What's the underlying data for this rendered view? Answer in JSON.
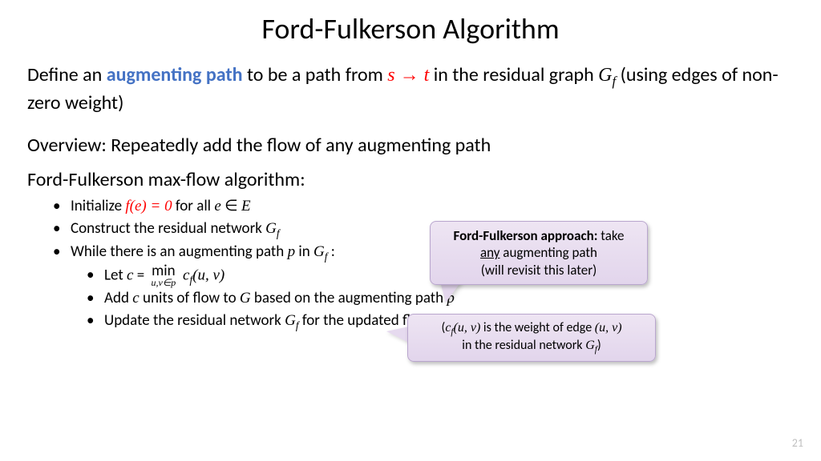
{
  "title": "Ford-Fulkerson Algorithm",
  "def_prefix": "Define an ",
  "def_highlight": "augmenting path",
  "def_mid": " to be a path from ",
  "def_s": "s",
  "def_arrow": " → ",
  "def_t": "t",
  "def_after": " in the residual graph ",
  "def_G": "G",
  "def_f": "f",
  "def_tail": "  (using edges of non-zero weight)",
  "overview": "Overview: Repeatedly add the flow of any augmenting path",
  "algo_head": "Ford-Fulkerson max-flow algorithm:",
  "b1a": "Initialize ",
  "b1_fe": "f(e)",
  "b1_eq": " = 0",
  "b1b": " for all ",
  "b1_e": "e",
  "b1_in": " ∈ ",
  "b1_E": "E",
  "b2a": "Construct the residual network ",
  "b2_G": "G",
  "b2_f": "f",
  "b3a": "While there is an augmenting path ",
  "b3_p": "p",
  "b3b": " in ",
  "b3_G": "G",
  "b3_f": "f",
  "b3c": " :",
  "b4a": "Let ",
  "b4_c": "c",
  "b4_eq": " = ",
  "b4_min": "min",
  "b4_sub": "u,v∈p",
  "b4_cf": " c",
  "b4_cfsub": "f",
  "b4_uv": "(u, v)",
  "b5a": "Add ",
  "b5_c": "c",
  "b5b": " units of flow to ",
  "b5_G": "G",
  "b5c": " based on the augmenting path ",
  "b5_p": "p",
  "b6a": "Update the residual network ",
  "b6_G": "G",
  "b6_f": "f",
  "b6b": " for the updated flow",
  "co1_bold": "Ford-Fulkerson approach:",
  "co1_rest": " take ",
  "co1_any": "any",
  "co1_line2": " augmenting path",
  "co1_line3": "(will revisit this later)",
  "co2_open": "(",
  "co2_c": "c",
  "co2_fsub": "f",
  "co2_uv": "(u, v)",
  "co2_mid": " is the weight of edge ",
  "co2_uv2": "(u, v)",
  "co2_line2a": "in the residual network ",
  "co2_G": "G",
  "co2_Gf": "f",
  "co2_close": ")",
  "pagenum": "21",
  "colors": {
    "highlight": "#4472c4",
    "math_red": "#ff0000",
    "callout_bg_top": "#eee5f3",
    "callout_bg_bot": "#e2d5ec",
    "callout_border": "#b9a6ce",
    "pagenum": "#bfbfbf",
    "background": "#ffffff"
  }
}
